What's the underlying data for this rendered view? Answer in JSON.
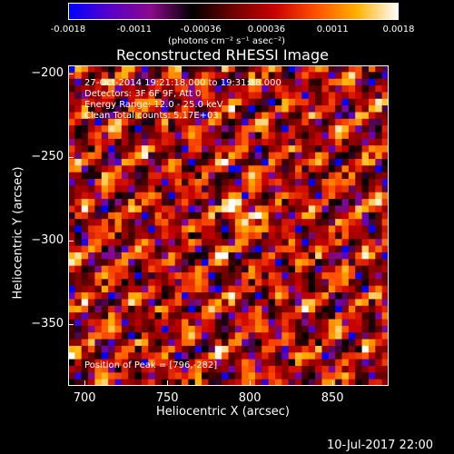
{
  "colorbar": {
    "ticks": [
      "-0.0018",
      "-0.0011",
      "-0.00036",
      "0.00036",
      "0.0011",
      "0.0018"
    ],
    "units": "(photons cm⁻² s⁻¹ asec⁻²)",
    "range": [
      -0.0018,
      0.0018
    ],
    "colors": [
      "#0000ff",
      "#5a00c8",
      "#8a0a8a",
      "#000000",
      "#700000",
      "#c80000",
      "#ff5000",
      "#ffb000",
      "#ffffff"
    ]
  },
  "chart_data": {
    "type": "heatmap",
    "title": "Reconstructed RHESSI Image",
    "xlabel": "Heliocentric X (arcsec)",
    "ylabel": "Heliocentric Y (arcsec)",
    "xlim": [
      690,
      884
    ],
    "ylim": [
      -387,
      -195
    ],
    "xticks": [
      700,
      750,
      800,
      850
    ],
    "yticks": [
      -200,
      -250,
      -300,
      -350
    ],
    "peak": [
      796,
      -282
    ],
    "annotations": [
      "27-Oct-2014 19:21:18.000 to 19:31:18.000",
      "Detectors: 3F 6F 9F, Att 0",
      "Energy Range: 12.0 - 25.0 keV",
      "Clean    Total counts: 5.17E+03"
    ],
    "peak_label": "Position of Peak = [796,-282]"
  },
  "footer": {
    "date": "10-Jul-2017 22:00"
  }
}
